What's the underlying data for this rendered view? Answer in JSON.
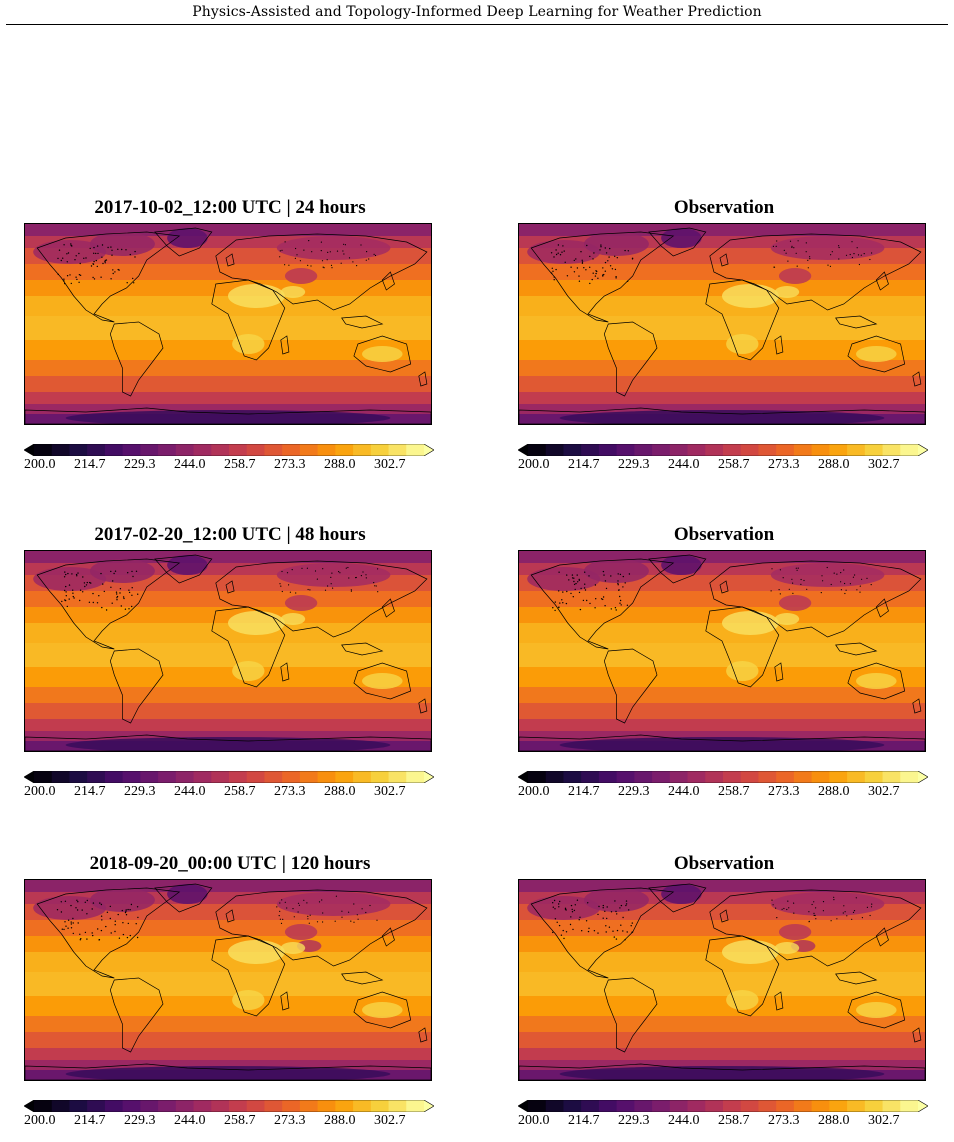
{
  "header": {
    "running_title": "Physics-Assisted and Topology-Informed Deep Learning for Weather Prediction"
  },
  "colormap": {
    "name": "inferno",
    "stops": [
      "#000004",
      "#1b0c41",
      "#4a0c6b",
      "#781c6d",
      "#a52c60",
      "#cf4446",
      "#ed6925",
      "#fb9b06",
      "#f7d13d",
      "#fcffa4"
    ]
  },
  "colorbar": {
    "ticks": [
      "200.0",
      "214.7",
      "229.3",
      "244.0",
      "258.7",
      "273.3",
      "288.0",
      "302.7"
    ],
    "levels": 22
  },
  "panels": [
    {
      "title": "2017-10-02_12:00 UTC | 24 hours",
      "kind": "prediction"
    },
    {
      "title": "Observation",
      "kind": "observation"
    },
    {
      "title": "2017-02-20_12:00 UTC | 48 hours",
      "kind": "prediction"
    },
    {
      "title": "Observation",
      "kind": "observation"
    },
    {
      "title": "2018-09-20_00:00 UTC |  120 hours",
      "kind": "prediction"
    },
    {
      "title": "Observation",
      "kind": "observation"
    }
  ]
}
